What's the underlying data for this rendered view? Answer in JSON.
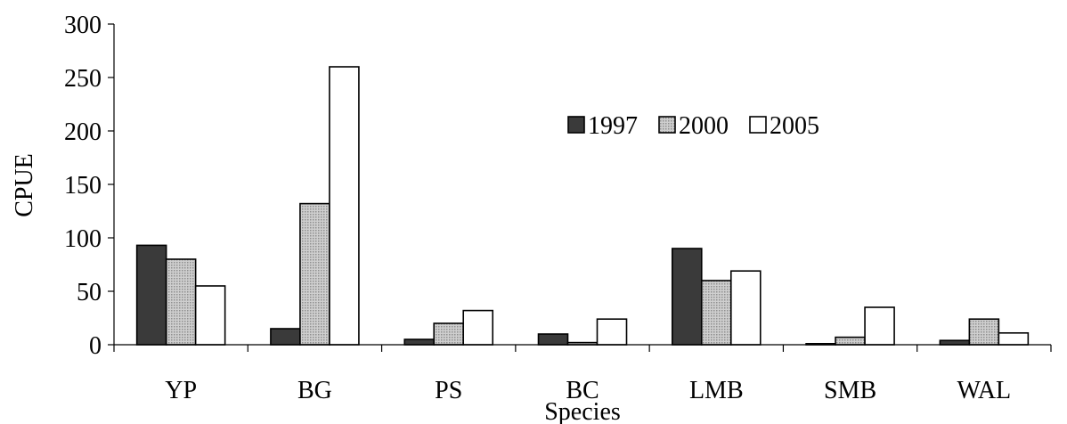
{
  "chart_data": {
    "type": "bar",
    "title": "",
    "xlabel": "Species",
    "ylabel": "CPUE",
    "categories": [
      "YP",
      "BG",
      "PS",
      "BC",
      "LMB",
      "SMB",
      "WAL"
    ],
    "series": [
      {
        "name": "1997",
        "values": [
          93,
          15,
          5,
          10,
          90,
          1,
          4
        ],
        "color": "#3a3a3a"
      },
      {
        "name": "2000",
        "values": [
          80,
          132,
          20,
          2,
          60,
          7,
          24
        ],
        "color": "#b4b4b4"
      },
      {
        "name": "2005",
        "values": [
          55,
          260,
          32,
          24,
          69,
          35,
          11
        ],
        "color": "#ffffff"
      }
    ],
    "ylim": [
      0,
      300
    ],
    "yticks": [
      "0",
      "50",
      "100",
      "150",
      "200",
      "250",
      "300"
    ],
    "grid": false,
    "legend": "top-right"
  }
}
